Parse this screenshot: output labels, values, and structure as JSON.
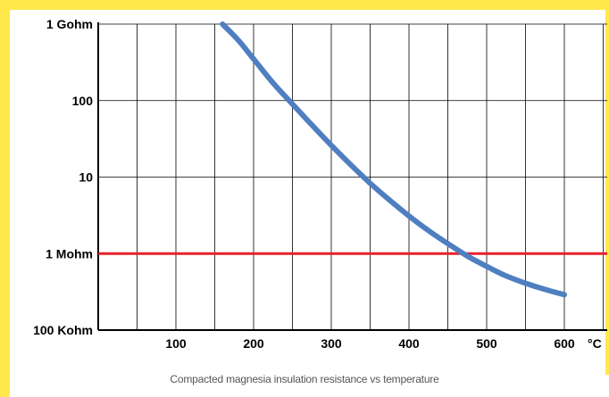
{
  "colors": {
    "frame": "#ffe94a",
    "grid": "#000000",
    "curve": "#4f7fc1",
    "threshold": "#e8212c"
  },
  "chart_data": {
    "type": "line",
    "title": "",
    "caption": "Compacted magnesia insulation resistance vs temperature",
    "xlabel": "",
    "ylabel": "",
    "x_unit": "°C",
    "xlim": [
      0,
      600
    ],
    "ylim_ohm": [
      100000,
      1000000000
    ],
    "y_scale": "log",
    "grid": true,
    "x_ticks": [
      {
        "value": 100,
        "label": "100"
      },
      {
        "value": 200,
        "label": "200"
      },
      {
        "value": 300,
        "label": "300"
      },
      {
        "value": 400,
        "label": "400"
      },
      {
        "value": 500,
        "label": "500"
      },
      {
        "value": 600,
        "label": "600"
      }
    ],
    "y_ticks": [
      {
        "value": 100000,
        "label": "100 Kohm"
      },
      {
        "value": 1000000,
        "label": "1 Mohm"
      },
      {
        "value": 10000000,
        "label": "10"
      },
      {
        "value": 100000000,
        "label": "100"
      },
      {
        "value": 1000000000,
        "label": "1 Gohm"
      }
    ],
    "series": [
      {
        "kind": "curve",
        "points": [
          [
            160,
            1000000000
          ],
          [
            180,
            620000000
          ],
          [
            200,
            350000000
          ],
          [
            225,
            170000000
          ],
          [
            250,
            90000000
          ],
          [
            275,
            48000000
          ],
          [
            300,
            26000000
          ],
          [
            325,
            14500000
          ],
          [
            350,
            8300000
          ],
          [
            375,
            5000000
          ],
          [
            400,
            3100000
          ],
          [
            425,
            2000000
          ],
          [
            450,
            1350000
          ],
          [
            475,
            930000
          ],
          [
            500,
            680000
          ],
          [
            525,
            510000
          ],
          [
            550,
            410000
          ],
          [
            575,
            340000
          ],
          [
            600,
            290000
          ]
        ]
      },
      {
        "kind": "threshold",
        "y": 1000000
      }
    ]
  }
}
